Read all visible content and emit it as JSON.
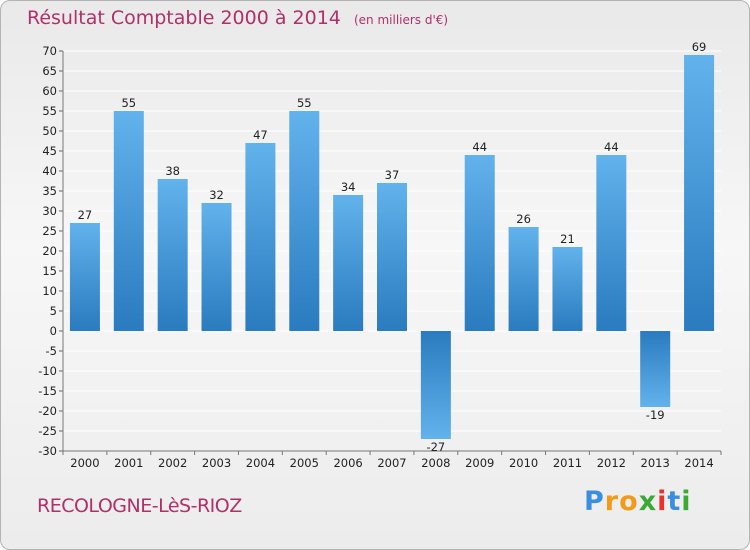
{
  "header": {
    "title": "Résultat Comptable 2000 à 2014",
    "unit": "(en milliers d'€)"
  },
  "footer": {
    "commune": "RECOLOGNE-LèS-RIOZ",
    "logo_letters": [
      "P",
      "r",
      "o",
      "x",
      "i",
      "t",
      "i"
    ],
    "logo_colors": [
      "#3a8ee0",
      "#f39a18",
      "#f39a18",
      "#3aaa35",
      "#e8322b",
      "#3a8ee0",
      "#3aaa35"
    ]
  },
  "colors": {
    "title": "#b22f6a",
    "bar_light": "#62b2ec",
    "bar_dark": "#2a7bbf",
    "grid": "#ffffff"
  },
  "chart_data": {
    "type": "bar",
    "title": "Résultat Comptable 2000 à 2014",
    "subtitle": "(en milliers d'€)",
    "categories": [
      "2000",
      "2001",
      "2002",
      "2003",
      "2004",
      "2005",
      "2006",
      "2007",
      "2008",
      "2009",
      "2010",
      "2011",
      "2012",
      "2013",
      "2014"
    ],
    "values": [
      27,
      55,
      38,
      32,
      47,
      55,
      34,
      37,
      -27,
      44,
      26,
      21,
      44,
      -19,
      69
    ],
    "ylim": [
      -30,
      70
    ],
    "ytick_step": 5,
    "grid": true,
    "legend": "none"
  }
}
